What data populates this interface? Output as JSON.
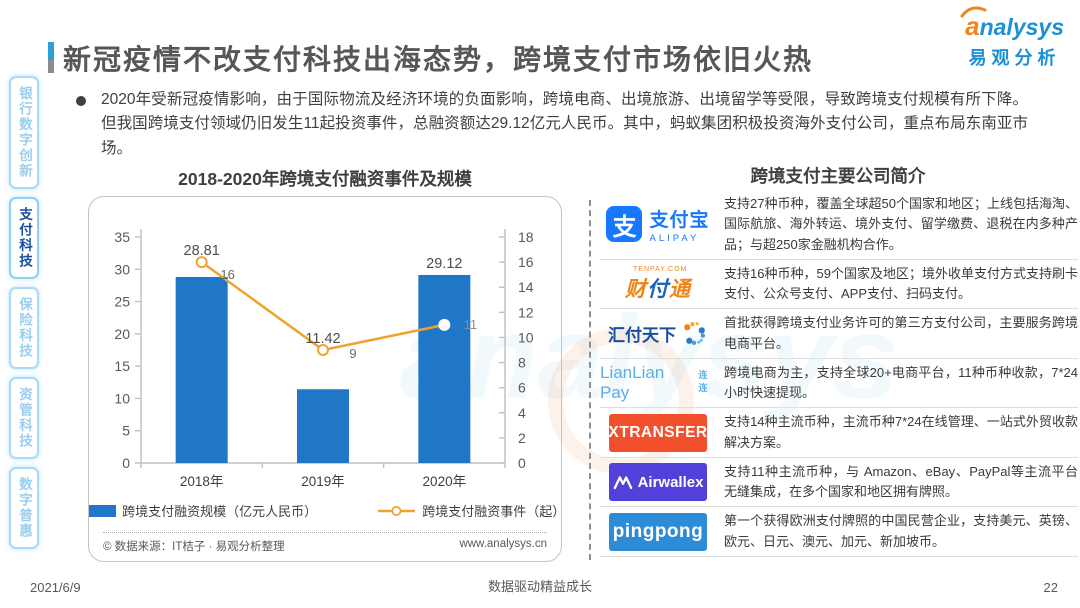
{
  "page": {
    "title": "新冠疫情不改支付科技出海态势，跨境支付市场依旧火热",
    "date": "2021/6/9",
    "footer_slogan": "数据驱动精益成长",
    "page_number": "22"
  },
  "theme": {
    "accent_blue": "#2B9FD9",
    "brand_blue": "#1C8FD6",
    "brand_orange": "#F08519",
    "bar_blue": "#2077C8",
    "line_orange": "#F0A22E",
    "sidebar_inactive": "#9CCEEE",
    "sidebar_active": "#174FA0"
  },
  "logo": {
    "name_first": "a",
    "name_rest": "nalysys",
    "cn": "易观分析"
  },
  "watermark": {
    "text": "analysys"
  },
  "sidebar": {
    "items": [
      {
        "id": "bank-digital-innovation",
        "label": "银行数字创新",
        "active": false
      },
      {
        "id": "payment-tech",
        "label": "支付科技",
        "active": true
      },
      {
        "id": "insurance-tech",
        "label": "保险科技",
        "active": false
      },
      {
        "id": "asset-mgmt-tech",
        "label": "资管科技",
        "active": false
      },
      {
        "id": "digital-inclusion",
        "label": "数字普惠",
        "active": false
      }
    ]
  },
  "bullet": {
    "text": "2020年受新冠疫情影响，由于国际物流及经济环境的负面影响，跨境电商、出境旅游、出境留学等受限，导致跨境支付规模有所下降。但我国跨境支付领域仍旧发生11起投资事件，总融资额达29.12亿元人民币。其中，蚂蚁集团积极投资海外支付公司，重点布局东南亚市场。"
  },
  "chart_data": {
    "type": "bar",
    "title": "2018-2020年跨境支付融资事件及规模",
    "categories": [
      "2018年",
      "2019年",
      "2020年"
    ],
    "series": [
      {
        "name": "跨境支付融资规模（亿元人民币）",
        "type": "bar",
        "axis": "left",
        "color": "#2077C8",
        "values": [
          28.81,
          11.42,
          29.12
        ],
        "labels": [
          "28.81",
          "11.42",
          "29.12"
        ]
      },
      {
        "name": "跨境支付融资事件（起）",
        "type": "line",
        "axis": "right",
        "color": "#F0A22E",
        "values": [
          16,
          9,
          11
        ],
        "labels": [
          "16",
          "9",
          "11"
        ]
      }
    ],
    "left_axis": {
      "min": 0,
      "max": 35,
      "step": 5
    },
    "right_axis": {
      "min": 0,
      "max": 18,
      "step": 2
    },
    "grid": false,
    "legend_position": "bottom",
    "source_left": "© 数据来源：IT桔子 · 易观分析整理",
    "source_right": "www.analysys.cn"
  },
  "companies": {
    "header": "跨境支付主要公司简介",
    "rows": [
      {
        "id": "alipay",
        "logo_icon": "支",
        "logo_cn": "支付宝",
        "logo_en": "ALIPAY",
        "desc": "支持27种币种，覆盖全球超50个国家和地区；上线包括海淘、国际航旅、海外转运、境外支付、留学缴费、退税在内多种产品；与超250家金融机构合作。"
      },
      {
        "id": "tenpay",
        "logo_top": "TENPAY.COM",
        "logo_cn": "财付通",
        "desc": "支持16种币种，59个国家及地区；境外收单支付方式支持刷卡支付、公众号支付、APP支付、扫码支付。"
      },
      {
        "id": "huifu",
        "logo_cn": "汇付天下",
        "desc": "首批获得跨境支付业务许可的第三方支付公司，主要服务跨境电商平台。"
      },
      {
        "id": "lianlian",
        "logo_en": "LianLian Pay",
        "logo_badge": "连连",
        "desc": "跨境电商为主，支持全球20+电商平台，11种币种收款，7*24 小时快速提现。"
      },
      {
        "id": "xtransfer",
        "logo_en": "XTRANSFER",
        "desc": "支持14种主流币种，主流币种7*24在线管理、一站式外贸收款解决方案。"
      },
      {
        "id": "airwallex",
        "logo_en": "Airwallex",
        "desc": "支持11种主流币种，与 Amazon、eBay、PayPal等主流平台无缝集成，在多个国家和地区拥有牌照。"
      },
      {
        "id": "pingpong",
        "logo_en": "pingpong",
        "desc": "第一个获得欧洲支付牌照的中国民营企业，支持美元、英镑、欧元、日元、澳元、加元、新加坡币。"
      }
    ]
  }
}
